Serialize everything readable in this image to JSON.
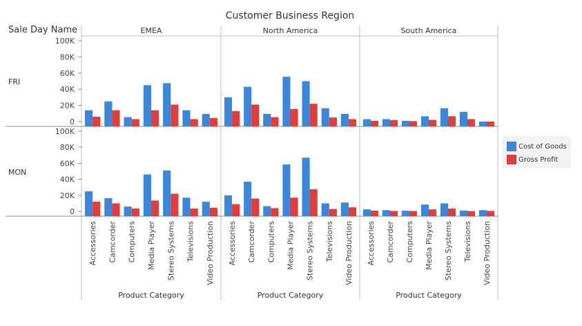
{
  "chart_data": {
    "type": "bar",
    "title": "Customer Business Region",
    "row_dimension_label": "Sale Day Name",
    "xlabel": "Product Category",
    "columns": [
      "EMEA",
      "North America",
      "South America"
    ],
    "rows": [
      "FRI",
      "MON"
    ],
    "categories": [
      "Accessories",
      "Camcorder",
      "Computers",
      "Media Player",
      "Stereo Systems",
      "Televisions",
      "Video Production"
    ],
    "y_ticks": [
      "0",
      "20K",
      "40K",
      "60K",
      "80K",
      "100K"
    ],
    "ylim": [
      0,
      100000
    ],
    "grid": false,
    "legend_position": "right",
    "series": [
      {
        "name": "Cost of Goods",
        "color": "#3a87dc"
      },
      {
        "name": "Gross Profit",
        "color": "#e03e3a"
      }
    ],
    "panels": [
      {
        "row": "FRI",
        "column": "EMEA",
        "values": {
          "Cost of Goods": [
            14000,
            25000,
            5500,
            45000,
            47500,
            14000,
            9500
          ],
          "Gross Profit": [
            6000,
            14000,
            3000,
            14000,
            21000,
            3000,
            4500
          ]
        }
      },
      {
        "row": "FRI",
        "column": "North America",
        "values": {
          "Cost of Goods": [
            30000,
            43000,
            9500,
            55500,
            50000,
            16500,
            9500
          ],
          "Gross Profit": [
            13000,
            21000,
            5500,
            15500,
            22000,
            5000,
            3000
          ]
        }
      },
      {
        "row": "FRI",
        "column": "South America",
        "values": {
          "Cost of Goods": [
            3000,
            3000,
            900,
            6500,
            16500,
            12000,
            0
          ],
          "Gross Profit": [
            900,
            1800,
            500,
            2000,
            6500,
            3000,
            0
          ]
        }
      },
      {
        "row": "MON",
        "column": "EMEA",
        "values": {
          "Cost of Goods": [
            25000,
            16500,
            6000,
            46000,
            51000,
            17000,
            12000
          ],
          "Gross Profit": [
            12000,
            10000,
            3500,
            13500,
            22000,
            3500,
            4500
          ]
        }
      },
      {
        "row": "MON",
        "column": "North America",
        "values": {
          "Cost of Goods": [
            20000,
            37000,
            6500,
            58500,
            67000,
            10000,
            11000
          ],
          "Gross Profit": [
            9000,
            16000,
            4000,
            17000,
            27500,
            3000,
            5000
          ]
        }
      },
      {
        "row": "MON",
        "column": "South America",
        "values": {
          "Cost of Goods": [
            2500,
            1500,
            800,
            8500,
            10000,
            1000,
            1500
          ],
          "Gross Profit": [
            900,
            500,
            400,
            2500,
            3500,
            300,
            500
          ]
        }
      }
    ]
  }
}
